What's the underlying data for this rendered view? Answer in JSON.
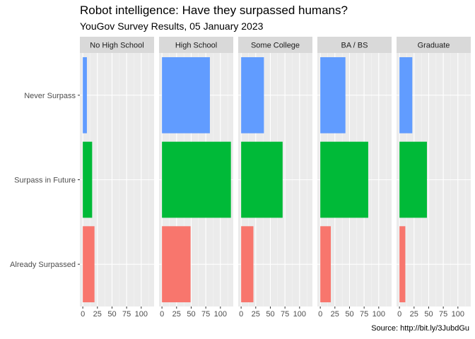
{
  "chart_data": {
    "type": "bar",
    "orientation": "horizontal",
    "title": "Robot intelligence: Have they surpassed humans?",
    "subtitle": "YouGov Survey Results, 05 January 2023",
    "caption": "Source: http://bit.ly/3JubdGu",
    "categories": [
      "Never Surpass",
      "Surpass in Future",
      "Already Surpassed"
    ],
    "facets": [
      "No High School",
      "High School",
      "Some College",
      "BA / BS",
      "Graduate"
    ],
    "category_colors": [
      "#619CFF",
      "#00BA38",
      "#F8766D"
    ],
    "xlim": [
      -5,
      122
    ],
    "xticks": [
      0,
      25,
      50,
      75,
      100
    ],
    "xtick_labels": [
      "0",
      "25",
      "50",
      "75",
      "100"
    ],
    "grid": true,
    "legend": "none",
    "panels": [
      {
        "facet": "No High School",
        "values": [
          7,
          16,
          20
        ]
      },
      {
        "facet": "High School",
        "values": [
          82,
          118,
          49
        ]
      },
      {
        "facet": "Some College",
        "values": [
          39,
          71,
          21
        ]
      },
      {
        "facet": "BA / BS",
        "values": [
          43,
          82,
          18
        ]
      },
      {
        "facet": "Graduate",
        "values": [
          22,
          47,
          10
        ]
      }
    ]
  }
}
